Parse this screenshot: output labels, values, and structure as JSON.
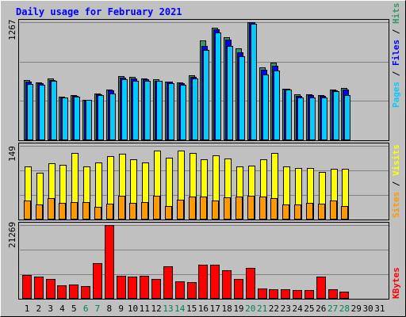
{
  "chart_data": [
    {
      "type": "bar",
      "title": "Daily usage for February 2021",
      "ylabel_parts": [
        "Pages",
        "Files",
        "Hits"
      ],
      "y_tick_label": "1267",
      "categories": [
        "1",
        "2",
        "3",
        "4",
        "5",
        "6",
        "7",
        "8",
        "9",
        "10",
        "11",
        "12",
        "13",
        "14",
        "15",
        "16",
        "17",
        "18",
        "19",
        "20",
        "21",
        "22",
        "23",
        "24",
        "25",
        "26",
        "27",
        "28",
        "29",
        "30",
        "31"
      ],
      "ylim": [
        0,
        1267
      ],
      "series": [
        {
          "name": "Hits",
          "values": [
            645,
            620,
            660,
            467,
            483,
            437,
            500,
            540,
            692,
            680,
            664,
            653,
            630,
            622,
            695,
            1070,
            1207,
            1103,
            986,
            1267,
            782,
            833,
            550,
            489,
            495,
            483,
            546,
            564,
            null,
            null,
            null
          ]
        },
        {
          "name": "Files",
          "values": [
            629,
            615,
            648,
            459,
            473,
            426,
            491,
            533,
            675,
            660,
            654,
            637,
            626,
            613,
            681,
            1009,
            1191,
            1080,
            946,
            1267,
            760,
            800,
            550,
            477,
            487,
            475,
            537,
            547,
            null,
            null,
            null
          ]
        },
        {
          "name": "Pages",
          "values": [
            606,
            592,
            634,
            458,
            468,
            430,
            484,
            500,
            656,
            640,
            642,
            635,
            616,
            595,
            665,
            966,
            1155,
            1011,
            903,
            1249,
            710,
            748,
            542,
            455,
            457,
            456,
            525,
            485,
            null,
            null,
            null
          ]
        }
      ],
      "colors": {
        "Hits": "#339966",
        "Files": "#0000ff",
        "Pages": "#00ccff"
      }
    },
    {
      "type": "bar",
      "ylabel_parts": [
        "Sites",
        "Visits"
      ],
      "y_tick_label": "149",
      "categories": [
        "1",
        "2",
        "3",
        "4",
        "5",
        "6",
        "7",
        "8",
        "9",
        "10",
        "11",
        "12",
        "13",
        "14",
        "15",
        "16",
        "17",
        "18",
        "19",
        "20",
        "21",
        "22",
        "23",
        "24",
        "25",
        "26",
        "27",
        "28",
        "29",
        "30",
        "31"
      ],
      "ylim": [
        0,
        149
      ],
      "series": [
        {
          "name": "Visits",
          "values": [
            108,
            95,
            114,
            111,
            135,
            107,
            115,
            128,
            133,
            121,
            116,
            140,
            125,
            139,
            135,
            121,
            130,
            124,
            108,
            109,
            122,
            134,
            108,
            104,
            104,
            96,
            103,
            103,
            null,
            null,
            null
          ]
        },
        {
          "name": "Sites",
          "values": [
            39,
            31,
            43,
            33,
            36,
            35,
            26,
            32,
            48,
            34,
            36,
            48,
            27,
            40,
            46,
            46,
            38,
            45,
            46,
            48,
            46,
            44,
            31,
            30,
            33,
            32,
            38,
            27,
            null,
            null,
            null
          ]
        }
      ],
      "colors": {
        "Visits": "#ffff00",
        "Sites": "#ff9900"
      }
    },
    {
      "type": "bar",
      "ylabel_parts": [
        "KBytes"
      ],
      "y_tick_label": "21269",
      "categories": [
        "1",
        "2",
        "3",
        "4",
        "5",
        "6",
        "7",
        "8",
        "9",
        "10",
        "11",
        "12",
        "13",
        "14",
        "15",
        "16",
        "17",
        "18",
        "19",
        "20",
        "21",
        "22",
        "23",
        "24",
        "25",
        "26",
        "27",
        "28",
        "29",
        "30",
        "31"
      ],
      "ylim": [
        0,
        21269
      ],
      "series": [
        {
          "name": "KBytes",
          "values": [
            6800,
            6400,
            5800,
            4000,
            4200,
            3700,
            10300,
            21269,
            6600,
            6500,
            6600,
            5800,
            9400,
            5100,
            4800,
            9800,
            9900,
            8300,
            5800,
            8900,
            2900,
            2800,
            2800,
            2500,
            2500,
            6400,
            2800,
            2000,
            null,
            null,
            null
          ]
        }
      ],
      "colors": {
        "KBytes": "#ff0000"
      }
    }
  ],
  "weekend_days": [
    6,
    7,
    13,
    14,
    20,
    21,
    27,
    28
  ]
}
